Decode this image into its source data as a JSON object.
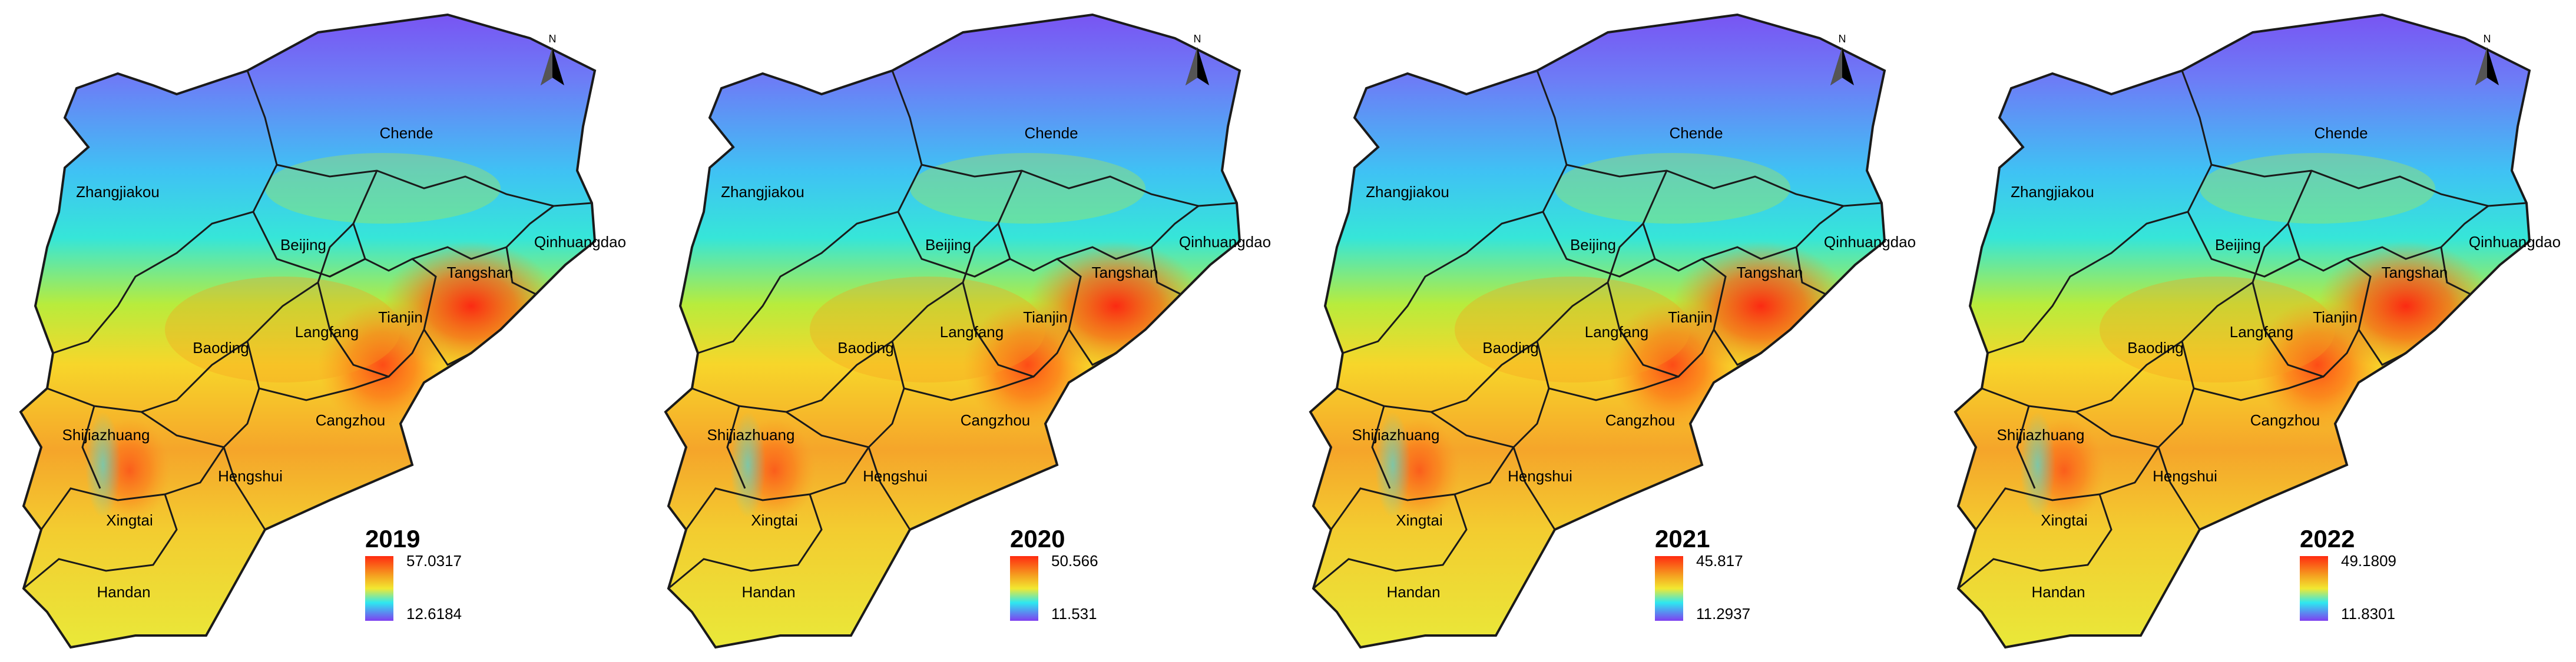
{
  "north_label": "N",
  "cities": {
    "zhangjiakou": "Zhangjiakou",
    "chende": "Chende",
    "beijing": "Beijing",
    "qinhuangdao": "Qinhuangdao",
    "tangshan": "Tangshan",
    "tianjin": "Tianjin",
    "langfang": "Langfang",
    "baoding": "Baoding",
    "cangzhou": "Cangzhou",
    "shijiazhuang": "Shijiazhuang",
    "hengshui": "Hengshui",
    "xingtai": "Xingtai",
    "handan": "Handan"
  },
  "panels": [
    {
      "year": "2019",
      "max": "57.0317",
      "min": "12.6184"
    },
    {
      "year": "2020",
      "max": "50.566",
      "min": "11.531"
    },
    {
      "year": "2021",
      "max": "45.817",
      "min": "11.2937"
    },
    {
      "year": "2022",
      "max": "49.1809",
      "min": "11.8301"
    }
  ],
  "colors": {
    "low": "#7f3ff0",
    "cyan": "#2ee8f0",
    "mid": "#f2e830",
    "high": "#ff2a10"
  }
}
